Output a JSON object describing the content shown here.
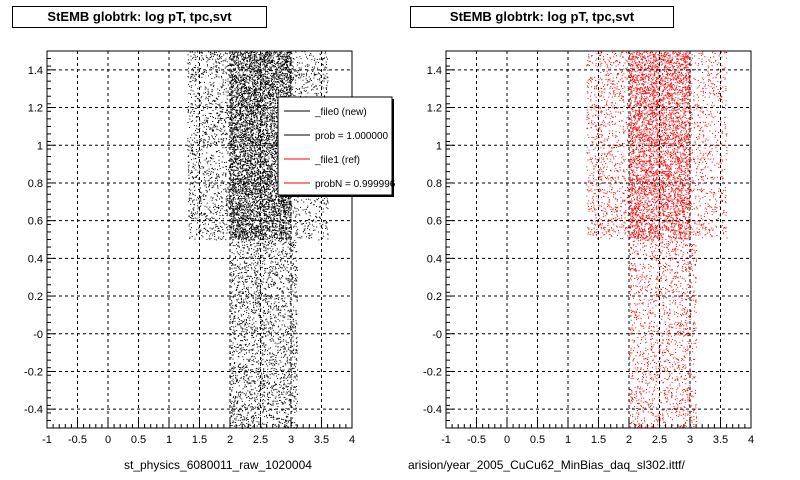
{
  "chart_data": [
    {
      "type": "scatter",
      "title": "StEMB globtrk: log pT, tpc,svt",
      "xlim": [
        -1,
        4
      ],
      "ylim": [
        -0.5,
        1.5
      ],
      "xticks": [
        "-1",
        "-0.5",
        "0",
        "0.5",
        "1",
        "1.5",
        "2",
        "2.5",
        "3",
        "3.5",
        "4"
      ],
      "yticks": [
        "-0.4",
        "-0.2",
        "-0",
        "0.2",
        "0.4",
        "0.6",
        "0.8",
        "1",
        "1.2",
        "1.4"
      ],
      "grid": true,
      "footer_label": "st_physics_6080011_raw_1020004",
      "series": [
        {
          "name": "_file0 (new)",
          "color": "#000000",
          "regions": [
            {
              "x": [
                1.3,
                2.0
              ],
              "y": [
                0.5,
                1.5
              ],
              "density": 0.25
            },
            {
              "x": [
                2.0,
                3.0
              ],
              "y": [
                0.5,
                1.5
              ],
              "density": 1.0
            },
            {
              "x": [
                3.0,
                3.6
              ],
              "y": [
                0.5,
                1.5
              ],
              "density": 0.2
            },
            {
              "x": [
                2.0,
                3.1
              ],
              "y": [
                -0.5,
                0.5
              ],
              "density": 0.3
            }
          ]
        }
      ],
      "legend": {
        "position": "top-right",
        "entries": [
          {
            "label": "_file0 (new)",
            "color": "#000000"
          },
          {
            "label": "prob = 1.000000",
            "color": "#000000"
          },
          {
            "label": "_file1 (ref)",
            "color": "#ff0000"
          },
          {
            "label": "probN = 0.999996",
            "color": "#ff0000"
          }
        ]
      }
    },
    {
      "type": "scatter",
      "title": "StEMB globtrk: log pT, tpc,svt",
      "xlim": [
        -1,
        4
      ],
      "ylim": [
        -0.5,
        1.5
      ],
      "xticks": [
        "-1",
        "-0.5",
        "0",
        "0.5",
        "1",
        "1.5",
        "2",
        "2.5",
        "3",
        "3.5",
        "4"
      ],
      "yticks": [
        "-0.4",
        "-0.2",
        "-0",
        "0.2",
        "0.4",
        "0.6",
        "0.8",
        "1",
        "1.2",
        "1.4"
      ],
      "grid": true,
      "footer_label": "arision/year_2005_CuCu62_MinBias_daq_sl302.ittf/",
      "series": [
        {
          "name": "_file1 (ref)",
          "color": "#ff0000",
          "regions": [
            {
              "x": [
                1.3,
                2.0
              ],
              "y": [
                0.5,
                1.5
              ],
              "density": 0.2
            },
            {
              "x": [
                2.0,
                3.0
              ],
              "y": [
                0.5,
                1.5
              ],
              "density": 0.7
            },
            {
              "x": [
                3.0,
                3.6
              ],
              "y": [
                0.5,
                1.5
              ],
              "density": 0.15
            },
            {
              "x": [
                2.0,
                3.1
              ],
              "y": [
                -0.5,
                0.5
              ],
              "density": 0.2
            }
          ]
        }
      ]
    }
  ]
}
